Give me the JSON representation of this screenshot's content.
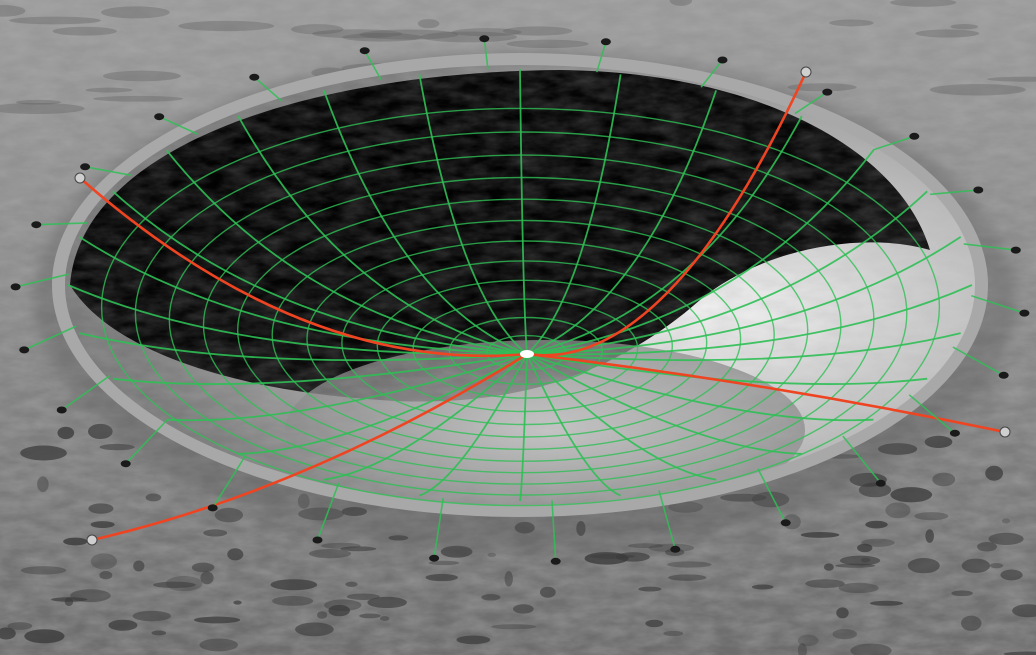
{
  "scene": {
    "subject": "lunar-crater-radio-telescope",
    "colors": {
      "regolith": "#8c8c8c",
      "regolith_dark": "#3a3a3a",
      "crater_shadow": "#050505",
      "crater_lit_wall": "#d8d8d8",
      "mesh": "#2fbf55",
      "feed_cable": "#ee4422",
      "anchor": "#1a1a1a",
      "receiver": "#ffffff"
    }
  }
}
